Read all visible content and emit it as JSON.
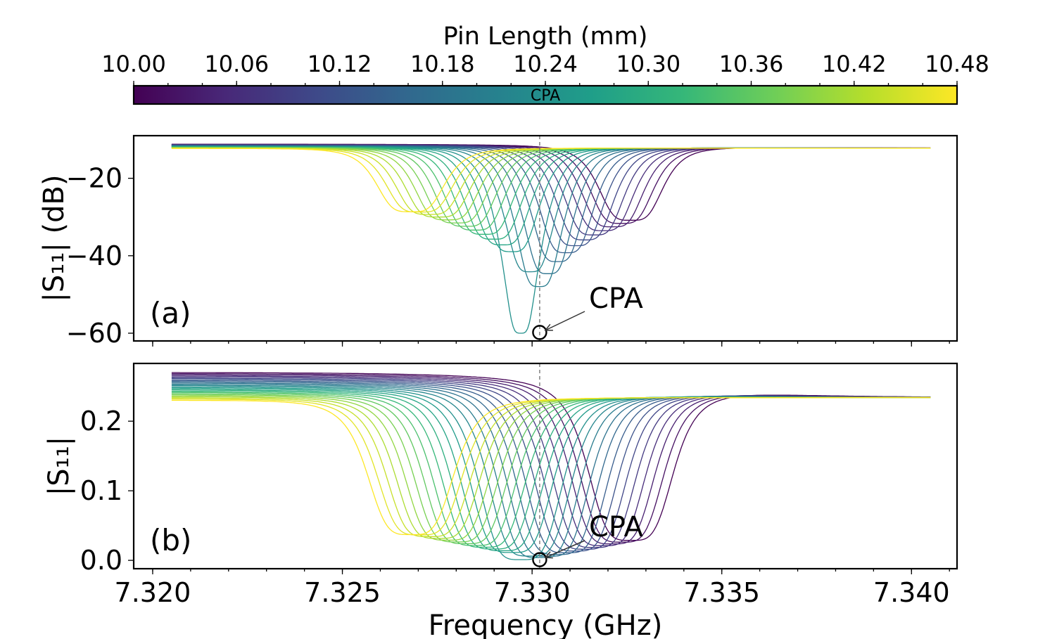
{
  "chart_data": [
    {
      "type": "colorbar",
      "title": "Pin Length (mm)",
      "tick_labels": [
        "10.00",
        "10.06",
        "10.12",
        "10.18",
        "10.24",
        "10.30",
        "10.36",
        "10.42",
        "10.48"
      ],
      "range": [
        10.0,
        10.48
      ],
      "colormap": [
        "#440154",
        "#482878",
        "#3e4989",
        "#31688e",
        "#26828e",
        "#1f9e89",
        "#35b779",
        "#6ece58",
        "#b5de2b",
        "#fde725"
      ],
      "marker_label": "CPA",
      "marker_value": 10.24
    },
    {
      "type": "line",
      "panel_label": "(a)",
      "ylabel": "|S₁₁| (dB)",
      "ylim": [
        -62,
        -9
      ],
      "xlim": [
        7.3195,
        7.3412
      ],
      "yticks": [
        -20,
        -40,
        -60
      ],
      "ytick_labels": [
        "−20",
        "−40",
        "−60"
      ],
      "annotation": {
        "text": "CPA",
        "x": 7.3302,
        "y": -59.8
      },
      "cpa_frequency": 7.3302,
      "series": {
        "count": 25,
        "pin_length_range": [
          10.0,
          10.48
        ],
        "resonance_range_GHz": [
          7.3326,
          7.3268
        ],
        "x_range": [
          7.3205,
          7.3405
        ],
        "left_level_dB": -11.2,
        "right_level_dB": -12.2,
        "min_dip_dB": -46,
        "cpa_curve_min_dB": -60
      }
    },
    {
      "type": "line",
      "panel_label": "(b)",
      "xlabel": "Frequency (GHz)",
      "ylabel": "|S₁₁|",
      "ylim": [
        -0.012,
        0.283
      ],
      "xlim": [
        7.3195,
        7.3412
      ],
      "xticks": [
        7.32,
        7.325,
        7.33,
        7.335,
        7.34
      ],
      "xtick_labels": [
        "7.320",
        "7.325",
        "7.330",
        "7.335",
        "7.340"
      ],
      "yticks": [
        0.0,
        0.1,
        0.2
      ],
      "ytick_labels": [
        "0.0",
        "0.1",
        "0.2"
      ],
      "annotation": {
        "text": "CPA",
        "x": 7.3302,
        "y": 0.001
      },
      "cpa_frequency": 7.3302,
      "series": {
        "count": 25,
        "pin_length_range": [
          10.0,
          10.48
        ],
        "resonance_range_GHz": [
          7.3326,
          7.3268
        ],
        "x_range": [
          7.3205,
          7.3405
        ],
        "left_level": [
          0.27,
          0.23
        ],
        "right_level": 0.234
      }
    }
  ]
}
